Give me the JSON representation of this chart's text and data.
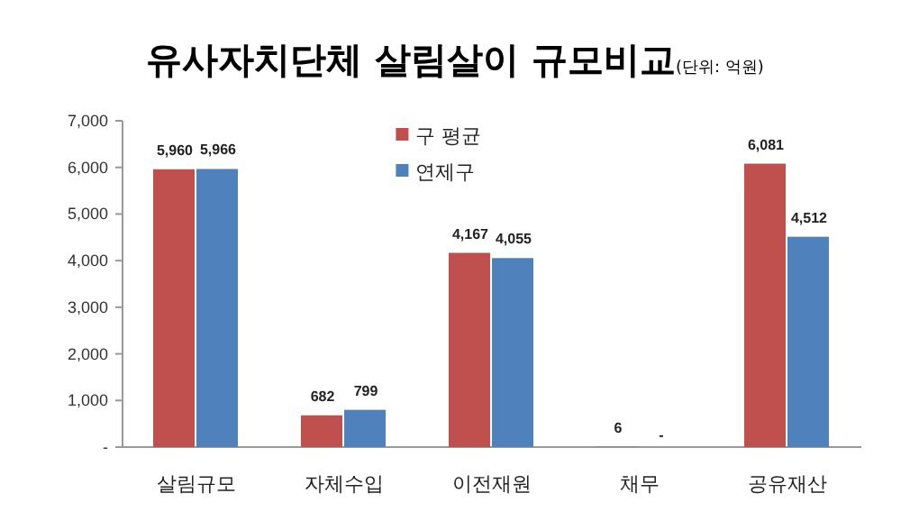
{
  "chart_data": {
    "type": "bar",
    "title": "유사자치단체 살림살이 규모비교",
    "subtitle": "(단위: 억원)",
    "categories": [
      "살림규모",
      "자체수입",
      "이전재원",
      "채무",
      "공유재산"
    ],
    "series": [
      {
        "name": "구 평균",
        "color": "#c0504d",
        "values": [
          5960,
          682,
          4167,
          6,
          6081
        ],
        "value_labels": [
          "5,960",
          "682",
          "4,167",
          "6",
          "6,081"
        ]
      },
      {
        "name": "연제구",
        "color": "#4f81bd",
        "values": [
          5966,
          799,
          4055,
          null,
          4512
        ],
        "value_labels": [
          "5,966",
          "799",
          "4,055",
          "-",
          "4,512"
        ]
      }
    ],
    "ylim": [
      0,
      7000
    ],
    "yticks": [
      {
        "value": 0,
        "label": "-"
      },
      {
        "value": 1000,
        "label": "1,000"
      },
      {
        "value": 2000,
        "label": "2,000"
      },
      {
        "value": 3000,
        "label": "3,000"
      },
      {
        "value": 4000,
        "label": "4,000"
      },
      {
        "value": 5000,
        "label": "5,000"
      },
      {
        "value": 6000,
        "label": "6,000"
      },
      {
        "value": 7000,
        "label": "7,000"
      }
    ],
    "legend": "top",
    "grid": false
  }
}
